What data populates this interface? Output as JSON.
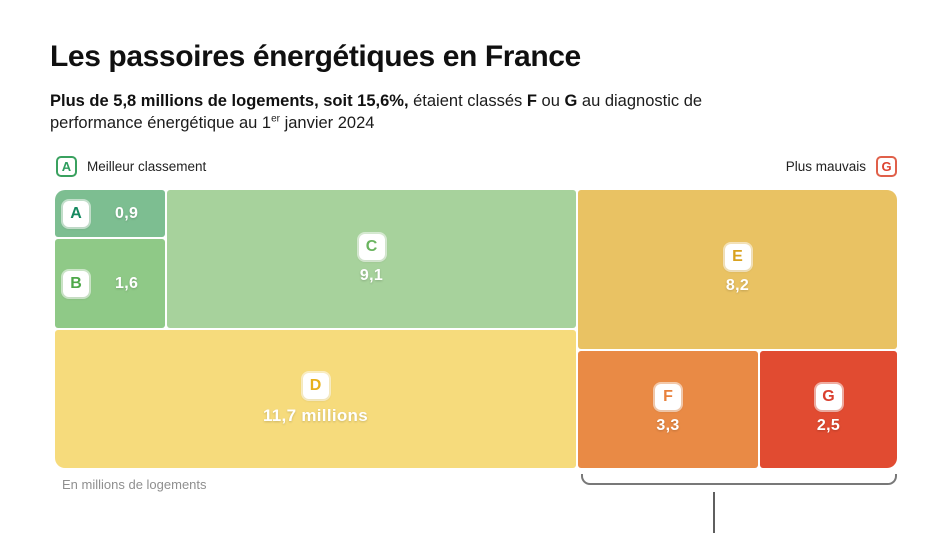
{
  "header": {
    "title": "Les passoires énergétiques en France",
    "subtitle": {
      "b1": "Plus de 5,8 millions de logements, soit 15,6%,",
      "r1": " étaient classés ",
      "b2": "F",
      "r2": " ou ",
      "b3": "G",
      "r3": " au diagnostic de performance énergétique au 1",
      "sup": "er",
      "r4": " janvier 2024"
    }
  },
  "legend": {
    "best": {
      "badge": "A",
      "label": "Meilleur classement"
    },
    "worst": {
      "badge": "G",
      "label": "Plus mauvais"
    }
  },
  "blocks": {
    "a": {
      "letter": "A",
      "value": "0,9"
    },
    "b": {
      "letter": "B",
      "value": "1,6"
    },
    "c": {
      "letter": "C",
      "value": "9,1"
    },
    "d": {
      "letter": "D",
      "value": "11,7 millions"
    },
    "e": {
      "letter": "E",
      "value": "8,2"
    },
    "f": {
      "letter": "F",
      "value": "3,3"
    },
    "g": {
      "letter": "G",
      "value": "2,5"
    }
  },
  "footnote": "En millions de logements",
  "chart_data": {
    "type": "treemap",
    "title": "Les passoires énergétiques en France",
    "subtitle": "Plus de 5,8 millions de logements, soit 15,6%, étaient classés F ou G au diagnostic de performance énergétique au 1er janvier 2024",
    "categories": [
      "A",
      "B",
      "C",
      "D",
      "E",
      "F",
      "G"
    ],
    "values": [
      0.9,
      1.6,
      9.1,
      11.7,
      8.2,
      3.3,
      2.5
    ],
    "value_labels": [
      "0,9",
      "1,6",
      "9,1",
      "11,7 millions",
      "8,2",
      "3,3",
      "2,5"
    ],
    "unit_note": "En millions de logements",
    "highlighted_group": [
      "F",
      "G"
    ],
    "legend": {
      "left": "Meilleur classement",
      "right": "Plus mauvais"
    },
    "colors": {
      "block_a": "#7dbe91",
      "block_b": "#8fc987",
      "block_c": "#a7d29c",
      "block_d": "#f6db7c",
      "block_e": "#e9c263",
      "block_f": "#e98a45",
      "block_g": "#e14b31",
      "letter_a": "#15895f",
      "letter_b": "#4ea849",
      "letter_c": "#6ab45f",
      "letter_d": "#e7b11c",
      "letter_e": "#d9a21f",
      "letter_f": "#e8813c",
      "letter_g": "#da3f2e",
      "legend_best": "#2f9e5f",
      "legend_worst": "#dd4330",
      "value_text": "#ffffff",
      "bracket": "#787878"
    }
  }
}
